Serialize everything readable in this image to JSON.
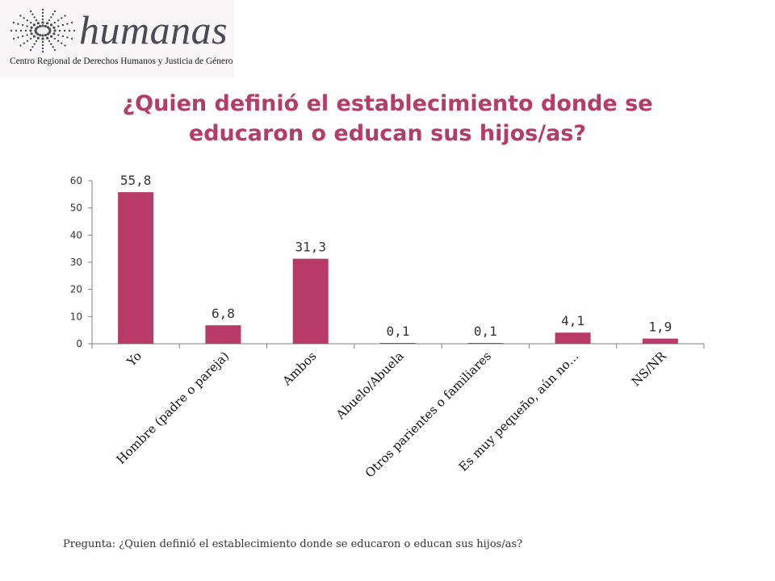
{
  "logo": {
    "word": "humanas",
    "tagline": "Centro Regional de Derechos Humanos y Justicia de Género",
    "icon": "dotted-star-icon"
  },
  "title": {
    "line1": "¿Quien definió el establecimiento donde se",
    "line2": "educaron o  educan sus hijos/as?"
  },
  "footer": {
    "text": "Pregunta: ¿Quien definió el establecimiento donde se educaron o  educan sus hijos/as?"
  },
  "colors": {
    "bar": "#b83a68",
    "title": "#b33c68",
    "axis": "#808080",
    "text": "#333333"
  },
  "chart_data": {
    "type": "bar",
    "title": "¿Quien definió el establecimiento donde se educaron o  educan sus hijos/as?",
    "xlabel": "",
    "ylabel": "",
    "ylim": [
      0,
      60
    ],
    "yticks": [
      "0",
      "10",
      "20",
      "30",
      "40",
      "50",
      "60"
    ],
    "grid": false,
    "categories": [
      "Yo",
      "Hombre (padre o pareja)",
      "Ambos",
      "Abuelo/Abuela",
      "Otros parientes o familiares",
      "Es muy pequeño, aún no…",
      "NS/NR"
    ],
    "values": [
      55.8,
      6.8,
      31.3,
      0.1,
      0.1,
      4.1,
      1.9
    ],
    "value_labels": [
      "55,8",
      "6,8",
      "31,3",
      "0,1",
      "0,1",
      "4,1",
      "1,9"
    ]
  }
}
